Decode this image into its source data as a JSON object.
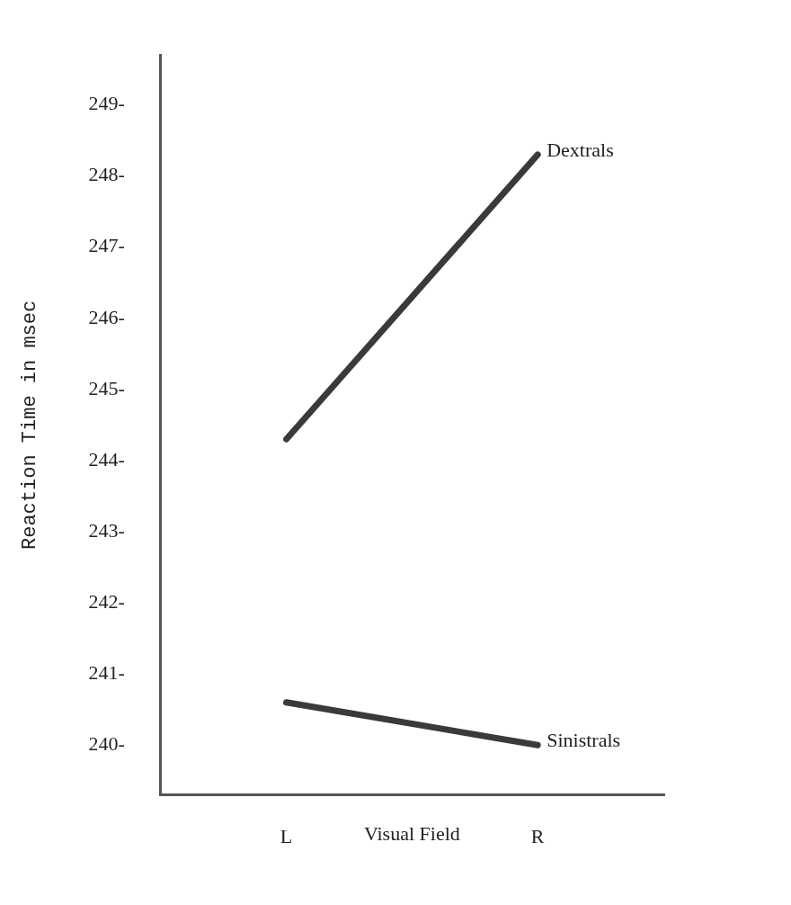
{
  "chart_data": {
    "type": "line",
    "xlabel": "Visual Field",
    "ylabel": "Reaction Time in msec",
    "categories": [
      "L",
      "R"
    ],
    "series": [
      {
        "name": "Dextrals",
        "color": "#3a3a3a",
        "values": [
          244.3,
          248.3
        ]
      },
      {
        "name": "Sinistrals",
        "color": "#3a3a3a",
        "values": [
          240.6,
          240.0
        ]
      }
    ],
    "ylim": [
      239.3,
      249.7
    ],
    "yticks": [
      {
        "value": 240,
        "label": "240-"
      },
      {
        "value": 241,
        "label": "241-"
      },
      {
        "value": 242,
        "label": "242-"
      },
      {
        "value": 243,
        "label": "243-"
      },
      {
        "value": 244,
        "label": "244-"
      },
      {
        "value": 245,
        "label": "245-"
      },
      {
        "value": 246,
        "label": "246-"
      },
      {
        "value": 247,
        "label": "247-"
      },
      {
        "value": 248,
        "label": "248-"
      },
      {
        "value": 249,
        "label": "249-"
      }
    ],
    "grid": false,
    "legend": false,
    "marker": "none",
    "line_style": "solid"
  }
}
